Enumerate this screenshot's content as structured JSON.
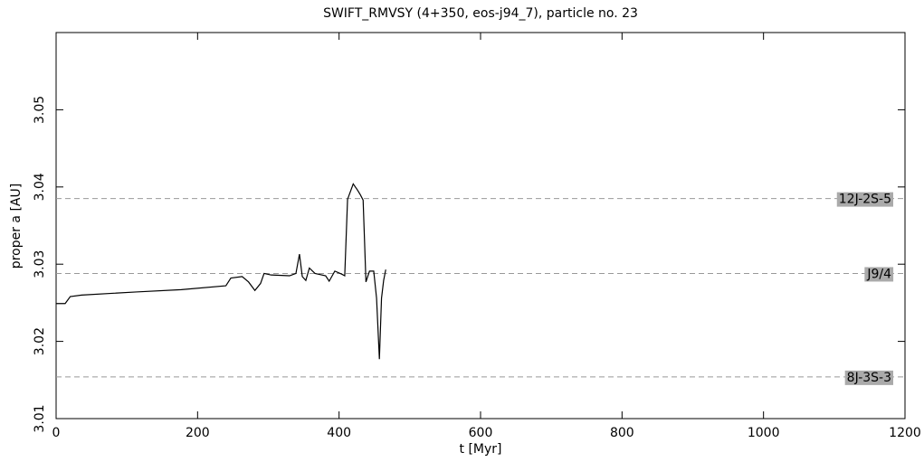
{
  "chart_data": {
    "type": "line",
    "title": "SWIFT_RMVSY (4+350, eos-j94_7), particle no. 23",
    "x_label": "t [Myr]",
    "y_label": "proper a [AU]",
    "xlim": [
      0,
      1200
    ],
    "xticks": [
      0,
      200,
      400,
      600,
      800,
      1000,
      1200
    ],
    "ylim": [
      3.01,
      3.06
    ],
    "yticks": [
      3.01,
      3.02,
      3.03,
      3.04,
      3.05
    ],
    "series": [
      {
        "color": "#000000",
        "x": [
          0,
          12.8,
          20,
          36,
          113,
          177,
          240,
          247,
          263,
          272,
          281,
          289,
          294,
          304,
          330,
          339,
          344,
          348,
          353,
          358,
          366,
          381,
          386,
          394,
          404,
          408,
          412,
          420,
          426,
          430,
          434,
          438,
          443,
          449,
          453,
          457,
          460,
          463,
          466
        ],
        "values": [
          3.0249,
          3.0249,
          3.0258,
          3.026,
          3.0264,
          3.0267,
          3.0272,
          3.0282,
          3.0284,
          3.0277,
          3.0266,
          3.0275,
          3.0288,
          3.0286,
          3.0285,
          3.0288,
          3.0313,
          3.0284,
          3.0279,
          3.0295,
          3.0288,
          3.0285,
          3.0278,
          3.0291,
          3.0287,
          3.0285,
          3.0384,
          3.0404,
          3.0396,
          3.039,
          3.0383,
          3.0277,
          3.0291,
          3.0291,
          3.0256,
          3.0177,
          3.0256,
          3.0279,
          3.0293
        ]
      }
    ],
    "resonances": [
      {
        "label": "12J-2S-5",
        "value": 3.0385
      },
      {
        "label": "J9/4",
        "value": 3.0288
      },
      {
        "label": "8J-3S-3",
        "value": 3.0154
      }
    ]
  }
}
